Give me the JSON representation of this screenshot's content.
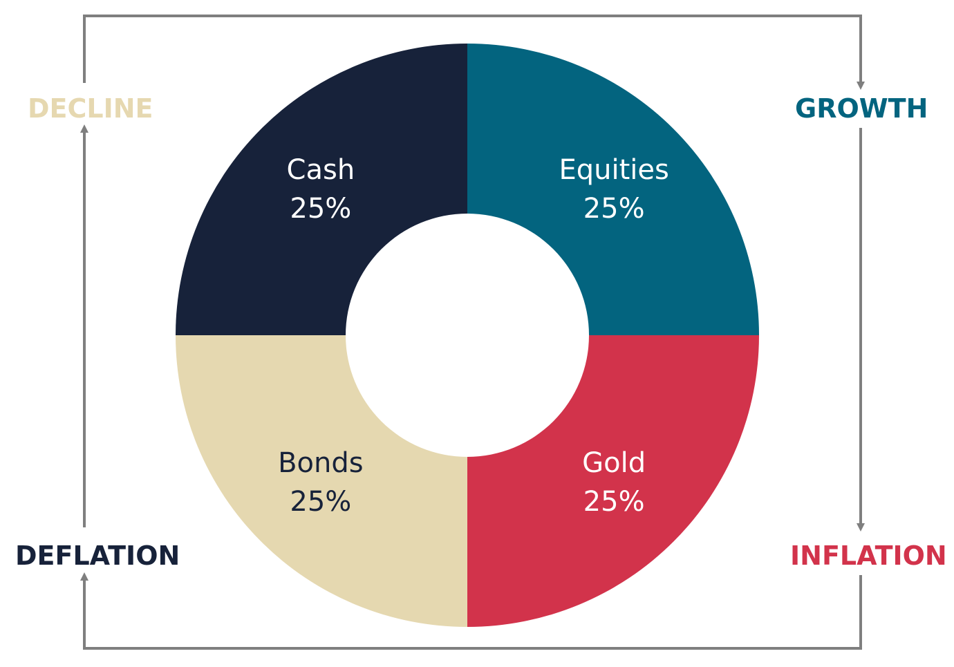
{
  "regimes": {
    "decline": {
      "label": "DECLINE",
      "color": "#e6d8b0"
    },
    "growth": {
      "label": "GROWTH",
      "color": "#03647f"
    },
    "deflation": {
      "label": "DEFLATION",
      "color": "#17223a"
    },
    "inflation": {
      "label": "INFLATION",
      "color": "#d2334b"
    }
  },
  "cycle_line_color": "#7f7f7f",
  "chart_data": {
    "type": "pie",
    "donut": true,
    "slices": [
      {
        "label": "Equities",
        "value": 25,
        "value_label": "25%",
        "color": "#03647f",
        "text_color": "#ffffff",
        "quadrant": "top-right"
      },
      {
        "label": "Gold",
        "value": 25,
        "value_label": "25%",
        "color": "#d2334b",
        "text_color": "#ffffff",
        "quadrant": "bottom-right"
      },
      {
        "label": "Bonds",
        "value": 25,
        "value_label": "25%",
        "color": "#e5d8b0",
        "text_color": "#17223a",
        "quadrant": "bottom-left"
      },
      {
        "label": "Cash",
        "value": 25,
        "value_label": "25%",
        "color": "#17223a",
        "text_color": "#ffffff",
        "quadrant": "top-left"
      }
    ]
  }
}
